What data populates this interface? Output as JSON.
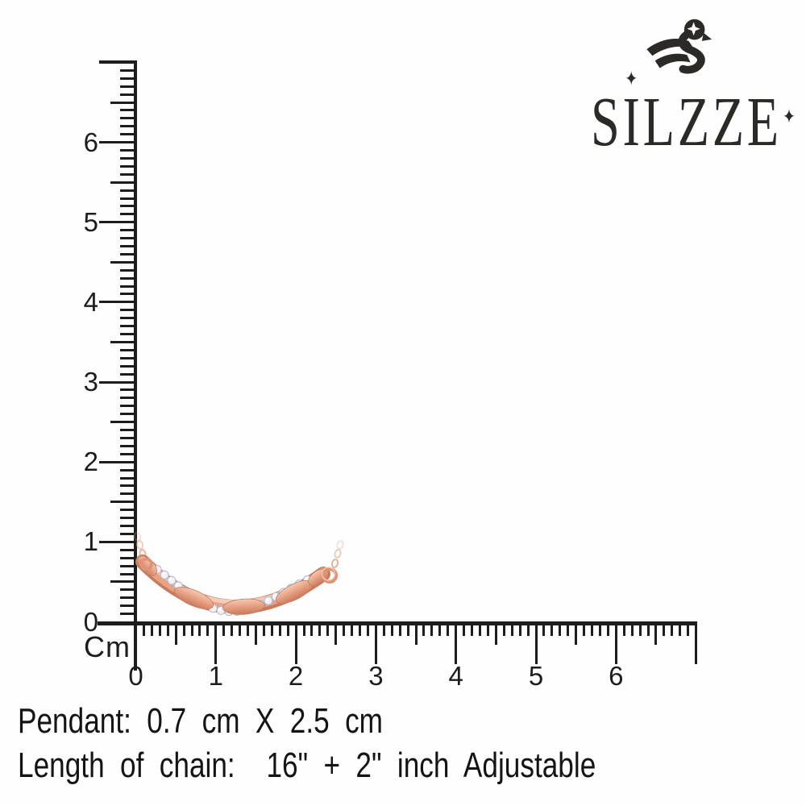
{
  "brand": {
    "letters": [
      "S",
      "I",
      "L",
      "Z",
      "Z",
      "E"
    ],
    "sparkle": "✦",
    "color": "#2b2a27",
    "icon": "swan"
  },
  "ruler": {
    "unit_label": "Cm",
    "vertical_labels": [
      "6",
      "5",
      "4",
      "3",
      "2",
      "1",
      "0"
    ],
    "horizontal_labels": [
      "0",
      "1",
      "2",
      "3",
      "4",
      "5",
      "6"
    ],
    "color": "#1d1d1b"
  },
  "pendant": {
    "description": "rose gold twisted bar pendant with pave diamonds and chain",
    "gold_dark": "#c97b5e",
    "gold_mid": "#e8a284",
    "gold_light": "#f8d2c0",
    "diamond_fill": "#f1f2f7",
    "diamond_stroke": "#b3b7cb",
    "measured_span_cm": "0 to 2.5"
  },
  "specs": {
    "line1": "Pendant: 0.7 cm X 2.5 cm",
    "line2": "Length of chain:  16\" + 2\" inch Adjustable"
  }
}
